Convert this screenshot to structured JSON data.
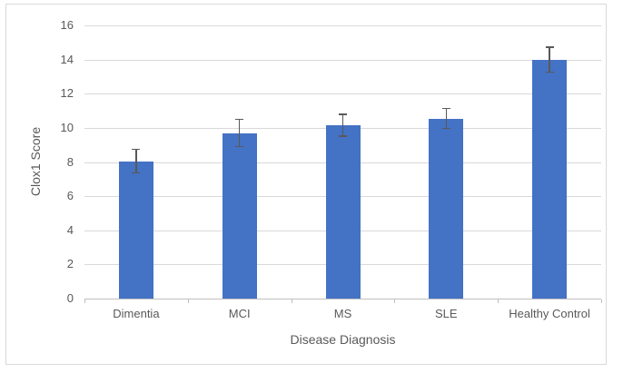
{
  "chart_data": {
    "type": "bar",
    "title": "",
    "xlabel": "Disease Diagnosis",
    "ylabel": "Clox1 Score",
    "categories": [
      "Dimentia",
      "MCI",
      "MS",
      "SLE",
      "Healthy Control"
    ],
    "series": [
      {
        "name": "Clox1 Score",
        "values": [
          8.05,
          9.7,
          10.15,
          10.55,
          14.0
        ],
        "errors": [
          0.7,
          0.8,
          0.65,
          0.6,
          0.75
        ]
      }
    ],
    "ylim": [
      0,
      16
    ],
    "ytick_step": 2,
    "ytick_labels": [
      "0",
      "2",
      "4",
      "6",
      "8",
      "10",
      "12",
      "14",
      "16"
    ],
    "grid": true,
    "legend": "none",
    "colors": {
      "bar": "#4472C4",
      "error_bar": "#595959",
      "gridline": "#D9D9D9",
      "axis_line": "#BFBFBF",
      "text": "#595959",
      "chart_border": "#D9D9D9",
      "background": "#FFFFFF"
    }
  }
}
